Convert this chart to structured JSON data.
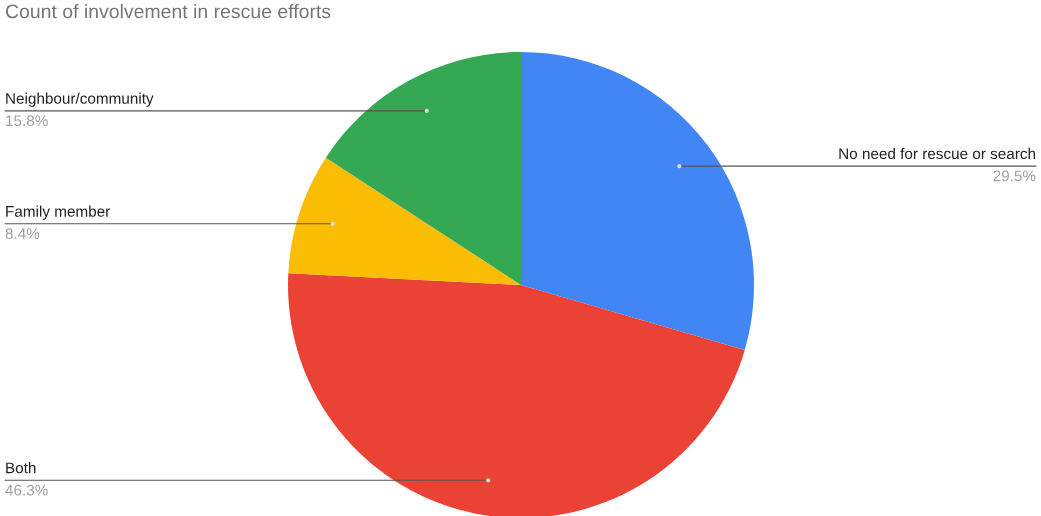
{
  "chart_data": {
    "type": "pie",
    "title": "Count of involvement in rescue efforts",
    "categories": [
      "No need for rescue or search",
      "Both",
      "Family member",
      "Neighbour/community"
    ],
    "values": [
      29.5,
      46.3,
      8.4,
      15.8
    ],
    "colors": [
      "#4285f4",
      "#ea4335",
      "#fbbc04",
      "#34a853"
    ],
    "value_labels": [
      "29.5%",
      "46.3%",
      "8.4%",
      "15.8%"
    ]
  }
}
